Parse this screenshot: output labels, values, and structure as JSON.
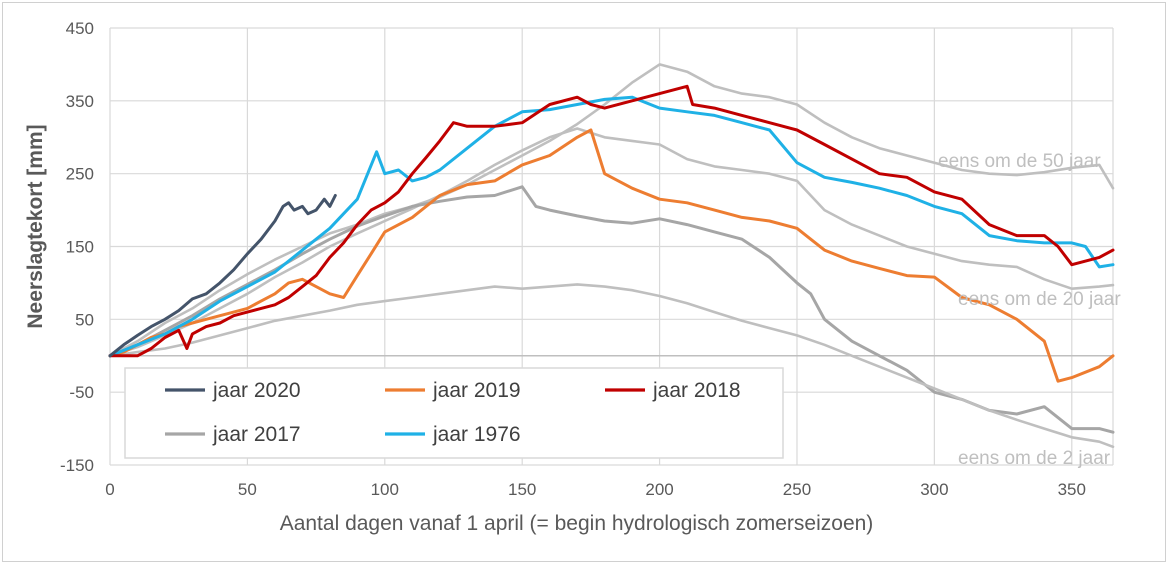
{
  "chart_data": {
    "type": "line",
    "title": "",
    "xlabel": "Aantal dagen vanaf 1 april (= begin hydrologisch zomerseizoen)",
    "ylabel": "Neerslagtekort [mm]",
    "xlim": [
      0,
      365
    ],
    "ylim": [
      -150,
      450
    ],
    "xticks": [
      0,
      50,
      100,
      150,
      200,
      250,
      300,
      350
    ],
    "yticks": [
      -150,
      -50,
      50,
      150,
      250,
      350,
      450
    ],
    "xtick_labels": [
      "0",
      "50",
      "100",
      "150",
      "200",
      "250",
      "300",
      "350"
    ],
    "ytick_labels": [
      "-150",
      "-50",
      "50",
      "150",
      "250",
      "350",
      "450"
    ],
    "grid": true,
    "legend_position": "bottom-left",
    "series": [
      {
        "name": "eens om de 50 jaar",
        "color": "#bfbfbf",
        "in_legend": false,
        "x": [
          0,
          10,
          20,
          30,
          40,
          50,
          60,
          70,
          80,
          90,
          100,
          110,
          120,
          130,
          140,
          150,
          160,
          170,
          180,
          190,
          200,
          210,
          220,
          230,
          240,
          250,
          260,
          270,
          280,
          290,
          300,
          310,
          320,
          330,
          340,
          350,
          360,
          365
        ],
        "y": [
          0,
          20,
          45,
          65,
          90,
          112,
          132,
          150,
          168,
          180,
          195,
          205,
          218,
          235,
          255,
          275,
          295,
          318,
          345,
          375,
          400,
          390,
          370,
          360,
          355,
          345,
          320,
          300,
          285,
          275,
          265,
          255,
          250,
          248,
          252,
          258,
          262,
          230
        ]
      },
      {
        "name": "eens om de 20 jaar",
        "color": "#bfbfbf",
        "in_legend": false,
        "x": [
          0,
          10,
          20,
          30,
          40,
          50,
          60,
          70,
          80,
          90,
          100,
          110,
          120,
          130,
          140,
          150,
          160,
          170,
          180,
          190,
          200,
          210,
          220,
          230,
          240,
          250,
          260,
          270,
          280,
          290,
          300,
          310,
          320,
          330,
          340,
          350,
          360,
          365
        ],
        "y": [
          0,
          12,
          28,
          45,
          65,
          85,
          108,
          128,
          150,
          168,
          185,
          202,
          220,
          240,
          262,
          282,
          300,
          312,
          300,
          295,
          290,
          270,
          260,
          255,
          250,
          240,
          200,
          180,
          165,
          150,
          140,
          130,
          125,
          122,
          105,
          92,
          95,
          97
        ]
      },
      {
        "name": "jaar 2017",
        "color": "#a6a6a6",
        "in_legend": true,
        "x": [
          0,
          10,
          20,
          30,
          40,
          50,
          60,
          70,
          80,
          90,
          100,
          110,
          120,
          130,
          140,
          150,
          155,
          160,
          170,
          180,
          190,
          200,
          210,
          220,
          230,
          240,
          250,
          255,
          260,
          270,
          280,
          290,
          300,
          310,
          320,
          330,
          340,
          350,
          360,
          365
        ],
        "y": [
          0,
          15,
          35,
          55,
          78,
          98,
          118,
          140,
          160,
          178,
          192,
          205,
          212,
          218,
          220,
          232,
          205,
          200,
          192,
          185,
          182,
          188,
          180,
          170,
          160,
          135,
          100,
          85,
          50,
          20,
          0,
          -20,
          -50,
          -60,
          -75,
          -80,
          -70,
          -100,
          -100,
          -105
        ]
      },
      {
        "name": "eens om de 2 jaar",
        "color": "#bfbfbf",
        "in_legend": false,
        "x": [
          0,
          10,
          20,
          30,
          40,
          50,
          60,
          70,
          80,
          90,
          100,
          110,
          120,
          130,
          140,
          150,
          160,
          170,
          180,
          190,
          200,
          210,
          220,
          230,
          240,
          250,
          260,
          270,
          280,
          290,
          300,
          310,
          320,
          330,
          340,
          350,
          360,
          365
        ],
        "y": [
          0,
          5,
          10,
          18,
          28,
          38,
          48,
          55,
          62,
          70,
          75,
          80,
          85,
          90,
          95,
          92,
          95,
          98,
          95,
          90,
          82,
          72,
          60,
          48,
          38,
          28,
          15,
          0,
          -15,
          -30,
          -45,
          -60,
          -75,
          -88,
          -100,
          -112,
          -118,
          -125
        ]
      },
      {
        "name": "jaar 2019",
        "color": "#ed7d31",
        "in_legend": true,
        "x": [
          0,
          5,
          10,
          15,
          20,
          25,
          30,
          35,
          40,
          45,
          50,
          55,
          60,
          65,
          70,
          75,
          80,
          85,
          90,
          95,
          100,
          110,
          120,
          130,
          140,
          150,
          160,
          170,
          175,
          180,
          190,
          200,
          210,
          220,
          230,
          240,
          250,
          255,
          260,
          270,
          280,
          290,
          300,
          310,
          320,
          330,
          340,
          345,
          350,
          360,
          365
        ],
        "y": [
          0,
          5,
          15,
          25,
          30,
          40,
          45,
          50,
          55,
          60,
          65,
          75,
          85,
          100,
          105,
          95,
          85,
          80,
          110,
          140,
          170,
          190,
          220,
          235,
          240,
          262,
          275,
          300,
          310,
          250,
          230,
          215,
          210,
          200,
          190,
          185,
          175,
          160,
          145,
          130,
          120,
          110,
          108,
          80,
          70,
          50,
          20,
          -35,
          -30,
          -15,
          0
        ]
      },
      {
        "name": "jaar 1976",
        "color": "#1fb1e6",
        "in_legend": true,
        "x": [
          0,
          10,
          20,
          30,
          40,
          50,
          60,
          70,
          80,
          90,
          97,
          100,
          105,
          110,
          115,
          120,
          130,
          140,
          150,
          160,
          170,
          180,
          190,
          200,
          210,
          220,
          230,
          240,
          250,
          260,
          270,
          280,
          290,
          300,
          310,
          320,
          330,
          340,
          350,
          355,
          360,
          365
        ],
        "y": [
          0,
          15,
          30,
          50,
          75,
          95,
          115,
          145,
          175,
          215,
          280,
          250,
          255,
          240,
          245,
          255,
          285,
          315,
          335,
          338,
          345,
          352,
          355,
          340,
          335,
          330,
          320,
          310,
          265,
          245,
          238,
          230,
          220,
          205,
          195,
          165,
          158,
          155,
          155,
          150,
          122,
          125
        ]
      },
      {
        "name": "jaar 2018",
        "color": "#c00000",
        "in_legend": true,
        "x": [
          0,
          10,
          15,
          20,
          25,
          28,
          30,
          35,
          40,
          45,
          50,
          55,
          60,
          65,
          70,
          75,
          80,
          85,
          90,
          95,
          100,
          105,
          110,
          115,
          120,
          125,
          130,
          140,
          150,
          160,
          170,
          175,
          180,
          190,
          200,
          210,
          212,
          220,
          230,
          240,
          250,
          260,
          270,
          280,
          290,
          300,
          310,
          320,
          330,
          340,
          345,
          350,
          360,
          365
        ],
        "y": [
          0,
          0,
          10,
          25,
          35,
          10,
          30,
          40,
          45,
          55,
          60,
          65,
          70,
          80,
          95,
          110,
          135,
          155,
          180,
          200,
          210,
          225,
          250,
          272,
          295,
          320,
          315,
          315,
          320,
          345,
          355,
          345,
          340,
          350,
          360,
          370,
          345,
          340,
          330,
          320,
          310,
          290,
          270,
          250,
          245,
          225,
          215,
          180,
          165,
          165,
          150,
          125,
          135,
          145
        ]
      },
      {
        "name": "jaar 2020",
        "color": "#44546a",
        "in_legend": true,
        "x": [
          0,
          5,
          10,
          15,
          20,
          25,
          30,
          35,
          40,
          45,
          50,
          55,
          60,
          63,
          65,
          67,
          70,
          72,
          75,
          78,
          80,
          82
        ],
        "y": [
          0,
          15,
          28,
          40,
          50,
          62,
          78,
          85,
          100,
          118,
          140,
          160,
          185,
          205,
          210,
          200,
          205,
          195,
          200,
          215,
          205,
          220
        ]
      }
    ],
    "annotations": [
      {
        "text": "eens om de 50 jaar",
        "series": "eens om de 50 jaar"
      },
      {
        "text": "eens om de 20 jaar",
        "series": "eens om de 20 jaar"
      },
      {
        "text": "eens om de 2 jaar",
        "series": "eens om de 2 jaar"
      }
    ]
  }
}
